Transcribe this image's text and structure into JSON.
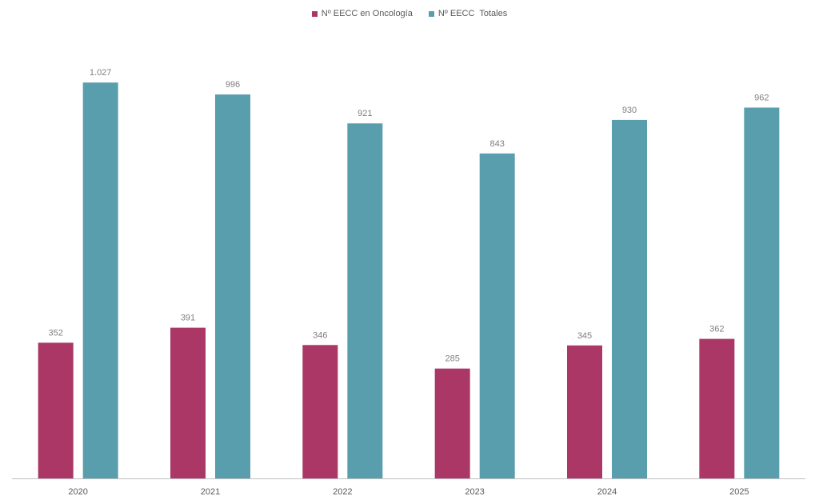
{
  "colors": {
    "oncologia": "#ab3766",
    "totales": "#599ead",
    "axis": "#bfbfbf"
  },
  "chart_data": {
    "type": "bar",
    "title": "",
    "xlabel": "",
    "ylabel": "",
    "ylim": [
      0,
      1100
    ],
    "grid": false,
    "legend_position": "top-center",
    "categories": [
      "2020",
      "2021",
      "2022",
      "2023",
      "2024",
      "2025"
    ],
    "series": [
      {
        "name": "Nº EECC en Oncología",
        "values": [
          352,
          391,
          346,
          285,
          345,
          362
        ],
        "labels": [
          "352",
          "391",
          "346",
          "285",
          "345",
          "362"
        ]
      },
      {
        "name": "Nº EECC  Totales",
        "values": [
          1027,
          996,
          921,
          843,
          930,
          962
        ],
        "labels": [
          "1.027",
          "996",
          "921",
          "843",
          "930",
          "962"
        ]
      }
    ]
  }
}
